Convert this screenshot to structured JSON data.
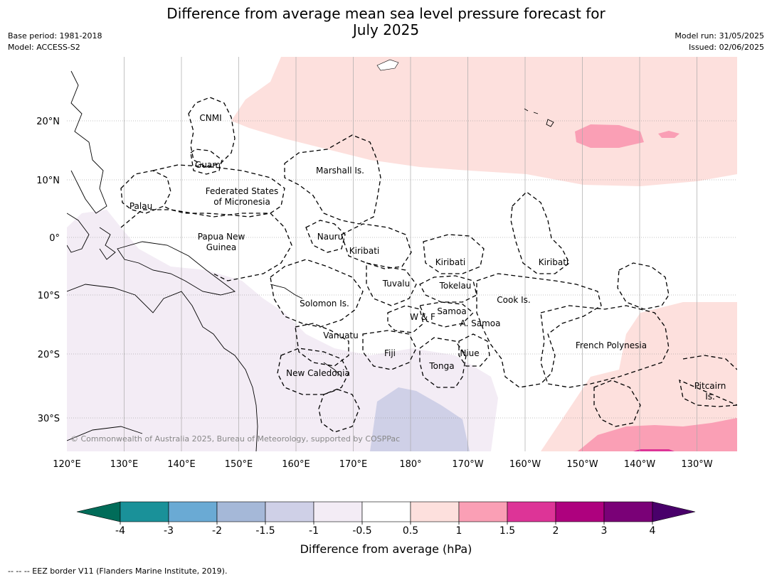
{
  "title_line1": "Difference from average mean sea level pressure forecast for",
  "title_line2": "July 2025",
  "meta_left": [
    "Base period: 1981-2018",
    "Model: ACCESS-S2"
  ],
  "meta_right": [
    "Model run: 31/05/2025",
    "Issued: 02/06/2025"
  ],
  "copyright": "© Commonwealth of Australia 2025, Bureau of Meteorology, supported by COSPPac",
  "map": {
    "lon_ticks": [
      "120°E",
      "130°E",
      "140°E",
      "150°E",
      "160°E",
      "170°E",
      "180°",
      "170°W",
      "160°W",
      "150°W",
      "140°W",
      "130°W"
    ],
    "lat_ticks": [
      "20°N",
      "10°N",
      "0°",
      "10°S",
      "20°S",
      "30°S"
    ],
    "labels": {
      "cnmi": "CNMI",
      "guam": "Guam",
      "marshall": "Marshall Is.",
      "fsm1": "Federated States",
      "fsm2": "of Micronesia",
      "palau": "Palau",
      "png1": "Papua New",
      "png2": "Guinea",
      "nauru": "Nauru",
      "kiribati_w": "Kiribati",
      "kiribati_c": "Kiribati",
      "kiribati_e": "Kiribati",
      "tuvalu": "Tuvalu",
      "tokelau": "Tokelau",
      "cook": "Cook Is.",
      "solomon": "Solomon Is.",
      "samoa": "Samoa",
      "wf": "W & F",
      "asamoa": "A. Samoa",
      "vanuatu": "Vanuatu",
      "fiji": "Fiji",
      "niue": "Niue",
      "tonga": "Tonga",
      "frpoly": "French Polynesia",
      "newcal": "New Caledonia",
      "pitcairn1": "Pitcairn",
      "pitcairn2": "Is."
    }
  },
  "colorbar": {
    "ticks": [
      "-4",
      "-3",
      "-2",
      "-1.5",
      "-1",
      "-0.5",
      "0.5",
      "1",
      "1.5",
      "2",
      "3",
      "4"
    ],
    "colors": [
      "#1a9199",
      "#6aaad4",
      "#a5b8d8",
      "#cfd0e7",
      "#f3ecf5",
      "#ffffff",
      "#fde0dd",
      "#fa9fb5",
      "#dd3497",
      "#ae017e",
      "#7a0177"
    ],
    "low_extend_color": "#016c59",
    "high_extend_color": "#49006a",
    "label": "Difference from average (hPa)"
  },
  "footer": "--  --  -- EEZ border V11 (Flanders Marine Institute, 2019)."
}
